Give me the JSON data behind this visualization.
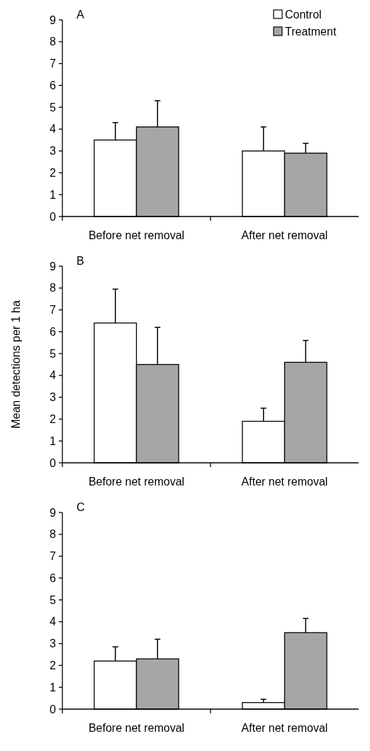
{
  "chart_data": [
    {
      "type": "bar",
      "title": "A",
      "categories": [
        "Before net removal",
        "After net removal"
      ],
      "ylim": [
        0,
        9
      ],
      "yticks": [
        0,
        1,
        2,
        3,
        4,
        5,
        6,
        7,
        8,
        9
      ],
      "legend": "top right",
      "series": [
        {
          "name": "Control",
          "color": "#ffffff",
          "values": [
            3.5,
            3.0
          ],
          "errors": [
            [
              3.5,
              4.3
            ],
            [
              3.0,
              4.1
            ]
          ]
        },
        {
          "name": "Treatment",
          "color": "#a6a6a6",
          "values": [
            4.1,
            2.9
          ],
          "errors": [
            [
              4.1,
              5.3
            ],
            [
              2.9,
              3.35
            ]
          ]
        }
      ]
    },
    {
      "type": "bar",
      "title": "B",
      "ylabel": "Mean detections per 1 ha",
      "categories": [
        "Before net removal",
        "After net removal"
      ],
      "ylim": [
        0,
        9
      ],
      "yticks": [
        0,
        1,
        2,
        3,
        4,
        5,
        6,
        7,
        8,
        9
      ],
      "series": [
        {
          "color": "#ffffff",
          "values": [
            6.4,
            1.9
          ],
          "errors": [
            [
              6.4,
              7.95
            ],
            [
              1.9,
              2.5
            ]
          ]
        },
        {
          "color": "#a6a6a6",
          "values": [
            4.5,
            4.6
          ],
          "errors": [
            [
              4.5,
              6.2
            ],
            [
              4.6,
              5.6
            ]
          ]
        }
      ]
    },
    {
      "type": "bar",
      "title": "C",
      "categories": [
        "Before net removal",
        "After net removal"
      ],
      "ylim": [
        0,
        9
      ],
      "yticks": [
        0,
        1,
        2,
        3,
        4,
        5,
        6,
        7,
        8,
        9
      ],
      "series": [
        {
          "color": "#ffffff",
          "values": [
            2.2,
            0.3
          ],
          "errors": [
            [
              2.2,
              2.85
            ],
            [
              0.3,
              0.45
            ]
          ]
        },
        {
          "color": "#a6a6a6",
          "values": [
            2.3,
            3.5
          ],
          "errors": [
            [
              2.3,
              3.2
            ],
            [
              3.5,
              4.15
            ]
          ]
        }
      ]
    }
  ]
}
